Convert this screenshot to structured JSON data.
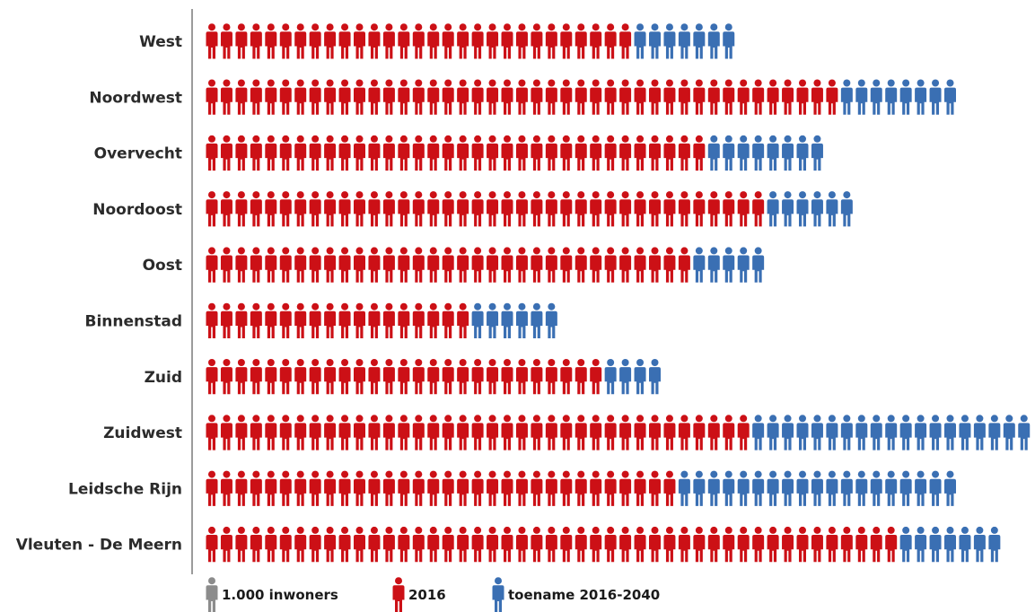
{
  "chart_data": {
    "type": "pictogram",
    "unit_label": "1.000 inwoners",
    "categories": [
      "West",
      "Noordwest",
      "Overvecht",
      "Noordoost",
      "Oost",
      "Binnenstad",
      "Zuid",
      "Zuidwest",
      "Leidsche Rijn",
      "Vleuten - De Meern"
    ],
    "series": [
      {
        "name": "2016",
        "values": [
          29,
          43,
          34,
          38,
          33,
          18,
          27,
          37,
          32,
          47
        ]
      },
      {
        "name": "toename 2016-2040",
        "values": [
          7,
          8,
          8,
          6,
          5,
          6,
          4,
          19,
          19,
          7
        ]
      }
    ],
    "legend": [
      {
        "label": "1.000 inwoners",
        "color": "#8c8c8c"
      },
      {
        "label": "2016",
        "color": "#cc1016"
      },
      {
        "label": "toename 2016-2040",
        "color": "#3a6fb3"
      }
    ],
    "colors": {
      "2016": "#cc1016",
      "toename": "#3a6fb3",
      "unit": "#8c8c8c",
      "axis": "#7a7a7a"
    },
    "legend_position": "bottom-left"
  }
}
